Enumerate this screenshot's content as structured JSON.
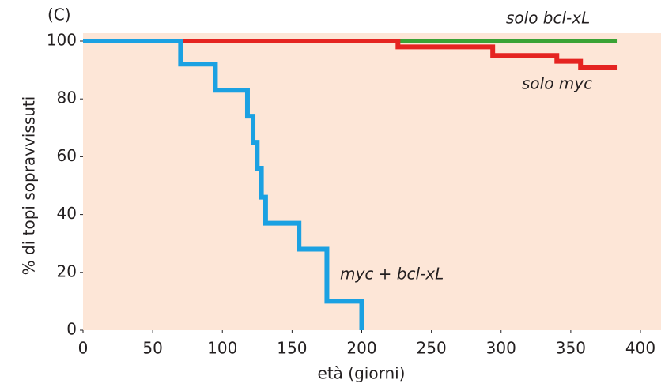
{
  "chart_data": {
    "type": "step",
    "panel": "(C)",
    "x_label": "età (giorni)",
    "y_label": "% di topi sopravvissuti",
    "xlim": [
      0,
      400
    ],
    "ylim": [
      0,
      100
    ],
    "xticks": [
      0,
      50,
      100,
      150,
      200,
      250,
      300,
      350,
      400
    ],
    "yticks": [
      0,
      20,
      40,
      60,
      80,
      100
    ],
    "background": "#fde6d7",
    "series": [
      {
        "name": "solo bcl-xL",
        "color": "#3aa335",
        "x": [
          0,
          383
        ],
        "values": [
          100,
          100
        ]
      },
      {
        "name": "solo myc",
        "color": "#e52421",
        "x": [
          0,
          226,
          294,
          340,
          357,
          383
        ],
        "values": [
          100,
          98,
          95,
          93,
          91,
          91
        ]
      },
      {
        "name": "myc + bcl-xL",
        "color": "#1ba1e2",
        "x": [
          0,
          70,
          95,
          118,
          122,
          125,
          128,
          131,
          155,
          175,
          200
        ],
        "values": [
          100,
          92,
          83,
          74,
          65,
          56,
          46,
          37,
          28,
          10,
          0
        ]
      }
    ]
  }
}
